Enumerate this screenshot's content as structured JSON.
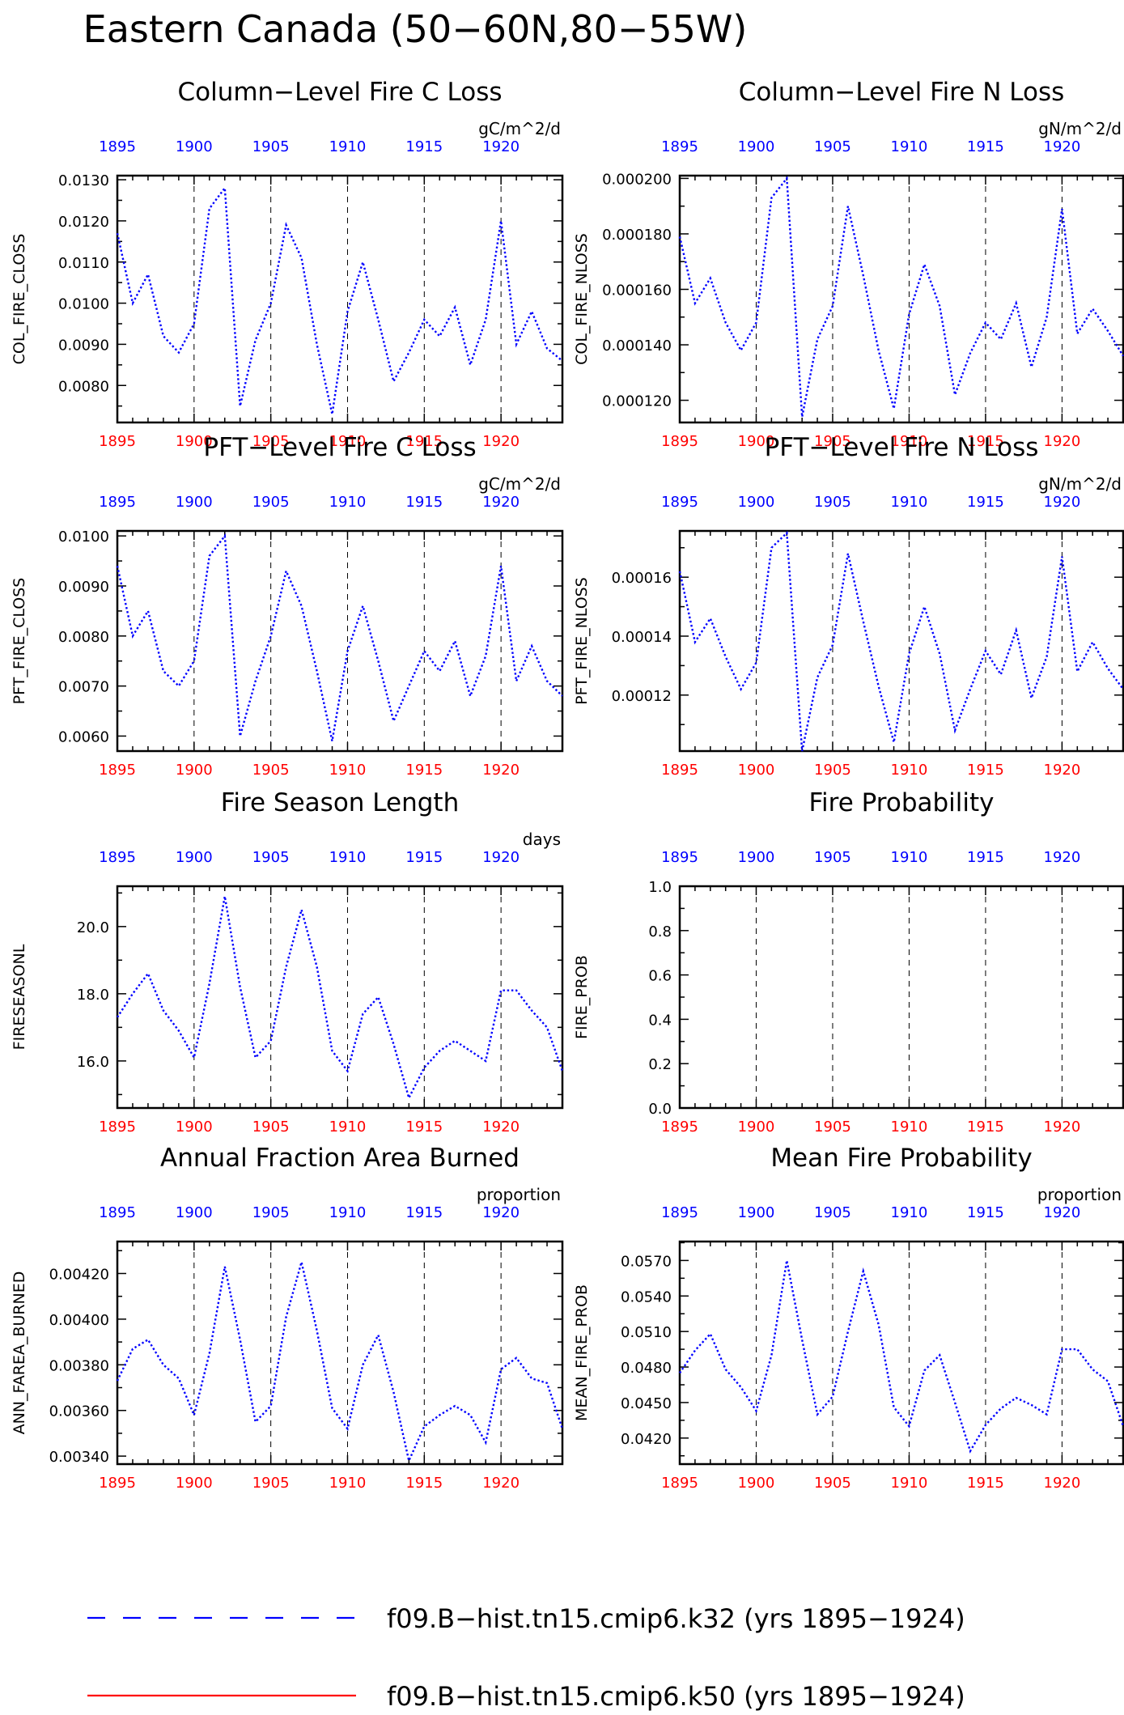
{
  "title": "Eastern Canada (50−60N,80−55W)",
  "colors": {
    "series": "#0000ff",
    "bottom_ticks": "#ff0000",
    "top_ticks": "#0000ff",
    "control_line": "#ff0000"
  },
  "legend": [
    {
      "label": "f09.B−hist.tn15.cmip6.k32 (yrs 1895−1924)",
      "style": "dashed",
      "color": "#0000ff"
    },
    {
      "label": "f09.B−hist.tn15.cmip6.k50 (yrs 1895−1924)",
      "style": "solid",
      "color": "#ff0000"
    }
  ],
  "chart_data": [
    {
      "type": "line",
      "title": "Column−Level Fire C Loss",
      "ylabel": "COL_FIRE_CLOSS",
      "units": "gC/m^2/d",
      "xlim": [
        1895,
        1924
      ],
      "ylim": [
        0.0071,
        0.0131
      ],
      "yticks": [
        0.008,
        0.009,
        0.01,
        0.011,
        0.012,
        0.013
      ],
      "ytick_labels": [
        "0.0080",
        "0.0090",
        "0.0100",
        "0.0110",
        "0.0120",
        "0.0130"
      ],
      "xticks": [
        1895,
        1900,
        1905,
        1910,
        1915,
        1920
      ],
      "x": [
        1895,
        1896,
        1897,
        1898,
        1899,
        1900,
        1901,
        1902,
        1903,
        1904,
        1905,
        1906,
        1907,
        1908,
        1909,
        1910,
        1911,
        1912,
        1913,
        1914,
        1915,
        1916,
        1917,
        1918,
        1919,
        1920,
        1921,
        1922,
        1923,
        1924
      ],
      "series": [
        {
          "values": [
            0.0117,
            0.01,
            0.0107,
            0.0092,
            0.0088,
            0.0095,
            0.0123,
            0.0128,
            0.0075,
            0.0091,
            0.01,
            0.0119,
            0.0111,
            0.009,
            0.0073,
            0.0098,
            0.011,
            0.0096,
            0.0081,
            0.0088,
            0.0096,
            0.0092,
            0.0099,
            0.0085,
            0.0096,
            0.012,
            0.009,
            0.0098,
            0.0089,
            0.0086
          ]
        }
      ]
    },
    {
      "type": "line",
      "title": "Column−Level Fire N Loss",
      "ylabel": "COL_FIRE_NLOSS",
      "units": "gN/m^2/d",
      "xlim": [
        1895,
        1924
      ],
      "ylim": [
        0.000112,
        0.000201
      ],
      "yticks": [
        0.00012,
        0.00014,
        0.00016,
        0.00018,
        0.0002
      ],
      "ytick_labels": [
        "0.000120",
        "0.000140",
        "0.000160",
        "0.000180",
        "0.000200"
      ],
      "xticks": [
        1895,
        1900,
        1905,
        1910,
        1915,
        1920
      ],
      "x": [
        1895,
        1896,
        1897,
        1898,
        1899,
        1900,
        1901,
        1902,
        1903,
        1904,
        1905,
        1906,
        1907,
        1908,
        1909,
        1910,
        1911,
        1912,
        1913,
        1914,
        1915,
        1916,
        1917,
        1918,
        1919,
        1920,
        1921,
        1922,
        1923,
        1924
      ],
      "series": [
        {
          "values": [
            0.000179,
            0.000155,
            0.000164,
            0.000148,
            0.000138,
            0.000148,
            0.000193,
            0.0002,
            0.000114,
            0.000142,
            0.000154,
            0.00019,
            0.000165,
            0.000138,
            0.000117,
            0.000151,
            0.000169,
            0.000154,
            0.000122,
            0.000137,
            0.000148,
            0.000142,
            0.000155,
            0.000132,
            0.00015,
            0.000189,
            0.000144,
            0.000153,
            0.000145,
            0.000136
          ]
        }
      ]
    },
    {
      "type": "line",
      "title": "PFT−Level Fire C Loss",
      "ylabel": "PFT_FIRE_CLOSS",
      "units": "gC/m^2/d",
      "xlim": [
        1895,
        1924
      ],
      "ylim": [
        0.0057,
        0.0101
      ],
      "yticks": [
        0.006,
        0.007,
        0.008,
        0.009,
        0.01
      ],
      "ytick_labels": [
        "0.0060",
        "0.0070",
        "0.0080",
        "0.0090",
        "0.0100"
      ],
      "xticks": [
        1895,
        1900,
        1905,
        1910,
        1915,
        1920
      ],
      "x": [
        1895,
        1896,
        1897,
        1898,
        1899,
        1900,
        1901,
        1902,
        1903,
        1904,
        1905,
        1906,
        1907,
        1908,
        1909,
        1910,
        1911,
        1912,
        1913,
        1914,
        1915,
        1916,
        1917,
        1918,
        1919,
        1920,
        1921,
        1922,
        1923,
        1924
      ],
      "series": [
        {
          "values": [
            0.0094,
            0.008,
            0.0085,
            0.0073,
            0.007,
            0.0075,
            0.0096,
            0.01,
            0.006,
            0.0071,
            0.008,
            0.0093,
            0.0086,
            0.0073,
            0.0059,
            0.0077,
            0.0086,
            0.0075,
            0.0063,
            0.007,
            0.0077,
            0.0073,
            0.0079,
            0.0068,
            0.0076,
            0.0094,
            0.0071,
            0.0078,
            0.0071,
            0.0068
          ]
        }
      ]
    },
    {
      "type": "line",
      "title": "PFT−Level Fire N Loss",
      "ylabel": "PFT_FIRE_NLOSS",
      "units": "gN/m^2/d",
      "xlim": [
        1895,
        1924
      ],
      "ylim": [
        0.000101,
        0.0001757
      ],
      "yticks": [
        0.00012,
        0.00014,
        0.00016
      ],
      "ytick_labels": [
        "0.00012",
        "0.00014",
        "0.00016"
      ],
      "xticks": [
        1895,
        1900,
        1905,
        1910,
        1915,
        1920
      ],
      "x": [
        1895,
        1896,
        1897,
        1898,
        1899,
        1900,
        1901,
        1902,
        1903,
        1904,
        1905,
        1906,
        1907,
        1908,
        1909,
        1910,
        1911,
        1912,
        1913,
        1914,
        1915,
        1916,
        1917,
        1918,
        1919,
        1920,
        1921,
        1922,
        1923,
        1924
      ],
      "series": [
        {
          "values": [
            0.000162,
            0.000138,
            0.000146,
            0.000133,
            0.000122,
            0.000131,
            0.00017,
            0.000175,
            0.000101,
            0.000126,
            0.000137,
            0.000168,
            0.000145,
            0.000123,
            0.000104,
            0.000134,
            0.00015,
            0.000134,
            0.000108,
            0.000122,
            0.000135,
            0.000127,
            0.000142,
            0.000119,
            0.000133,
            0.000167,
            0.000128,
            0.000138,
            0.000129,
            0.000122
          ]
        }
      ]
    },
    {
      "type": "line",
      "title": "Fire Season Length",
      "ylabel": "FIRESEASONL",
      "units": "days",
      "xlim": [
        1895,
        1924
      ],
      "ylim": [
        14.6,
        21.2
      ],
      "yticks": [
        16,
        18,
        20
      ],
      "ytick_labels": [
        "16.0",
        "18.0",
        "20.0"
      ],
      "xticks": [
        1895,
        1900,
        1905,
        1910,
        1915,
        1920
      ],
      "x": [
        1895,
        1896,
        1897,
        1898,
        1899,
        1900,
        1901,
        1902,
        1903,
        1904,
        1905,
        1906,
        1907,
        1908,
        1909,
        1910,
        1911,
        1912,
        1913,
        1914,
        1915,
        1916,
        1917,
        1918,
        1919,
        1920,
        1921,
        1922,
        1923,
        1924
      ],
      "series": [
        {
          "values": [
            17.3,
            18.0,
            18.6,
            17.5,
            16.9,
            16.1,
            18.3,
            20.9,
            18.2,
            16.1,
            16.6,
            18.8,
            20.5,
            18.8,
            16.3,
            15.7,
            17.4,
            17.9,
            16.5,
            14.9,
            15.8,
            16.3,
            16.6,
            16.3,
            16.0,
            18.1,
            18.1,
            17.5,
            17.0,
            15.7
          ]
        }
      ]
    },
    {
      "type": "line",
      "title": "Fire Probability",
      "ylabel": "FIRE_PROB",
      "units": "",
      "xlim": [
        1895,
        1924
      ],
      "ylim": [
        0.0,
        1.0
      ],
      "yticks": [
        0.0,
        0.2,
        0.4,
        0.6,
        0.8,
        1.0
      ],
      "ytick_labels": [
        "0.0",
        "0.2",
        "0.4",
        "0.6",
        "0.8",
        "1.0"
      ],
      "xticks": [
        1895,
        1900,
        1905,
        1910,
        1915,
        1920
      ],
      "x": [],
      "series": []
    },
    {
      "type": "line",
      "title": "Annual Fraction Area Burned",
      "ylabel": "ANN_FAREA_BURNED",
      "units": "proportion",
      "xlim": [
        1895,
        1924
      ],
      "ylim": [
        0.003365,
        0.00434
      ],
      "yticks": [
        0.0034,
        0.0036,
        0.0038,
        0.004,
        0.0042
      ],
      "ytick_labels": [
        "0.00340",
        "0.00360",
        "0.00380",
        "0.00400",
        "0.00420"
      ],
      "xticks": [
        1895,
        1900,
        1905,
        1910,
        1915,
        1920
      ],
      "x": [
        1895,
        1896,
        1897,
        1898,
        1899,
        1900,
        1901,
        1902,
        1903,
        1904,
        1905,
        1906,
        1907,
        1908,
        1909,
        1910,
        1911,
        1912,
        1913,
        1914,
        1915,
        1916,
        1917,
        1918,
        1919,
        1920,
        1921,
        1922,
        1923,
        1924
      ],
      "series": [
        {
          "values": [
            0.00373,
            0.00387,
            0.00391,
            0.0038,
            0.00374,
            0.00358,
            0.00385,
            0.00423,
            0.00391,
            0.00355,
            0.00362,
            0.00401,
            0.00425,
            0.00395,
            0.00361,
            0.00352,
            0.0038,
            0.00393,
            0.00368,
            0.00338,
            0.00353,
            0.00358,
            0.00362,
            0.00358,
            0.00346,
            0.00378,
            0.00383,
            0.00374,
            0.00372,
            0.00352
          ]
        }
      ]
    },
    {
      "type": "line",
      "title": "Mean Fire Probability",
      "ylabel": "MEAN_FIRE_PROB",
      "units": "proportion",
      "xlim": [
        1895,
        1924
      ],
      "ylim": [
        0.0398,
        0.0586
      ],
      "yticks": [
        0.042,
        0.045,
        0.048,
        0.051,
        0.054,
        0.057
      ],
      "ytick_labels": [
        "0.0420",
        "0.0450",
        "0.0480",
        "0.0510",
        "0.0540",
        "0.0570"
      ],
      "xticks": [
        1895,
        1900,
        1905,
        1910,
        1915,
        1920
      ],
      "x": [
        1895,
        1896,
        1897,
        1898,
        1899,
        1900,
        1901,
        1902,
        1903,
        1904,
        1905,
        1906,
        1907,
        1908,
        1909,
        1910,
        1911,
        1912,
        1913,
        1914,
        1915,
        1916,
        1917,
        1918,
        1919,
        1920,
        1921,
        1922,
        1923,
        1924
      ],
      "series": [
        {
          "values": [
            0.0475,
            0.0494,
            0.0508,
            0.0478,
            0.0463,
            0.0443,
            0.049,
            0.057,
            0.0503,
            0.044,
            0.0455,
            0.051,
            0.0561,
            0.0516,
            0.0446,
            0.043,
            0.0477,
            0.049,
            0.045,
            0.0409,
            0.0431,
            0.0445,
            0.0454,
            0.0448,
            0.044,
            0.0495,
            0.0495,
            0.0478,
            0.0468,
            0.043
          ]
        }
      ]
    }
  ]
}
